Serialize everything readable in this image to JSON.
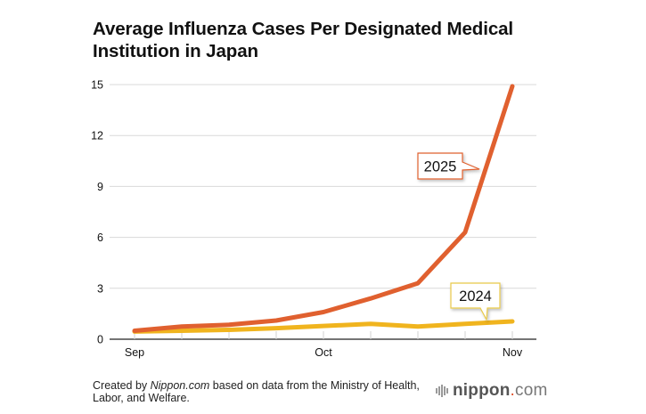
{
  "chart_data": {
    "type": "line",
    "title": "Average Influenza Cases Per Designated Medical Institution in Japan",
    "xlabel": "",
    "ylabel": "",
    "x": [
      0,
      1,
      2,
      3,
      4,
      5,
      6,
      7,
      8
    ],
    "x_tick_labels": [
      {
        "index": 0,
        "label": "Sep"
      },
      {
        "index": 4,
        "label": "Oct"
      },
      {
        "index": 8,
        "label": "Nov"
      }
    ],
    "ylim": [
      0,
      15
    ],
    "y_ticks": [
      0,
      3,
      6,
      9,
      12,
      15
    ],
    "grid": true,
    "series": [
      {
        "name": "2024",
        "color": "#f0b41e",
        "values": [
          0.45,
          0.5,
          0.55,
          0.65,
          0.78,
          0.9,
          0.75,
          0.9,
          1.05
        ]
      },
      {
        "name": "2025",
        "color": "#e0602f",
        "values": [
          0.5,
          0.75,
          0.85,
          1.1,
          1.6,
          2.4,
          3.3,
          6.3,
          14.9
        ]
      }
    ],
    "annotations": [
      {
        "text": "2025",
        "series": "2025",
        "border_color": "#e0602f"
      },
      {
        "text": "2024",
        "series": "2024",
        "border_color": "#e8c94a"
      }
    ]
  },
  "footer": {
    "note_prefix": "Created by ",
    "note_source": "Nippon.com",
    "note_suffix": " based on data from the Ministry of Health, Labor, and Welfare.",
    "brand_name": "nippon",
    "brand_dot": ".",
    "brand_tld": "com"
  }
}
